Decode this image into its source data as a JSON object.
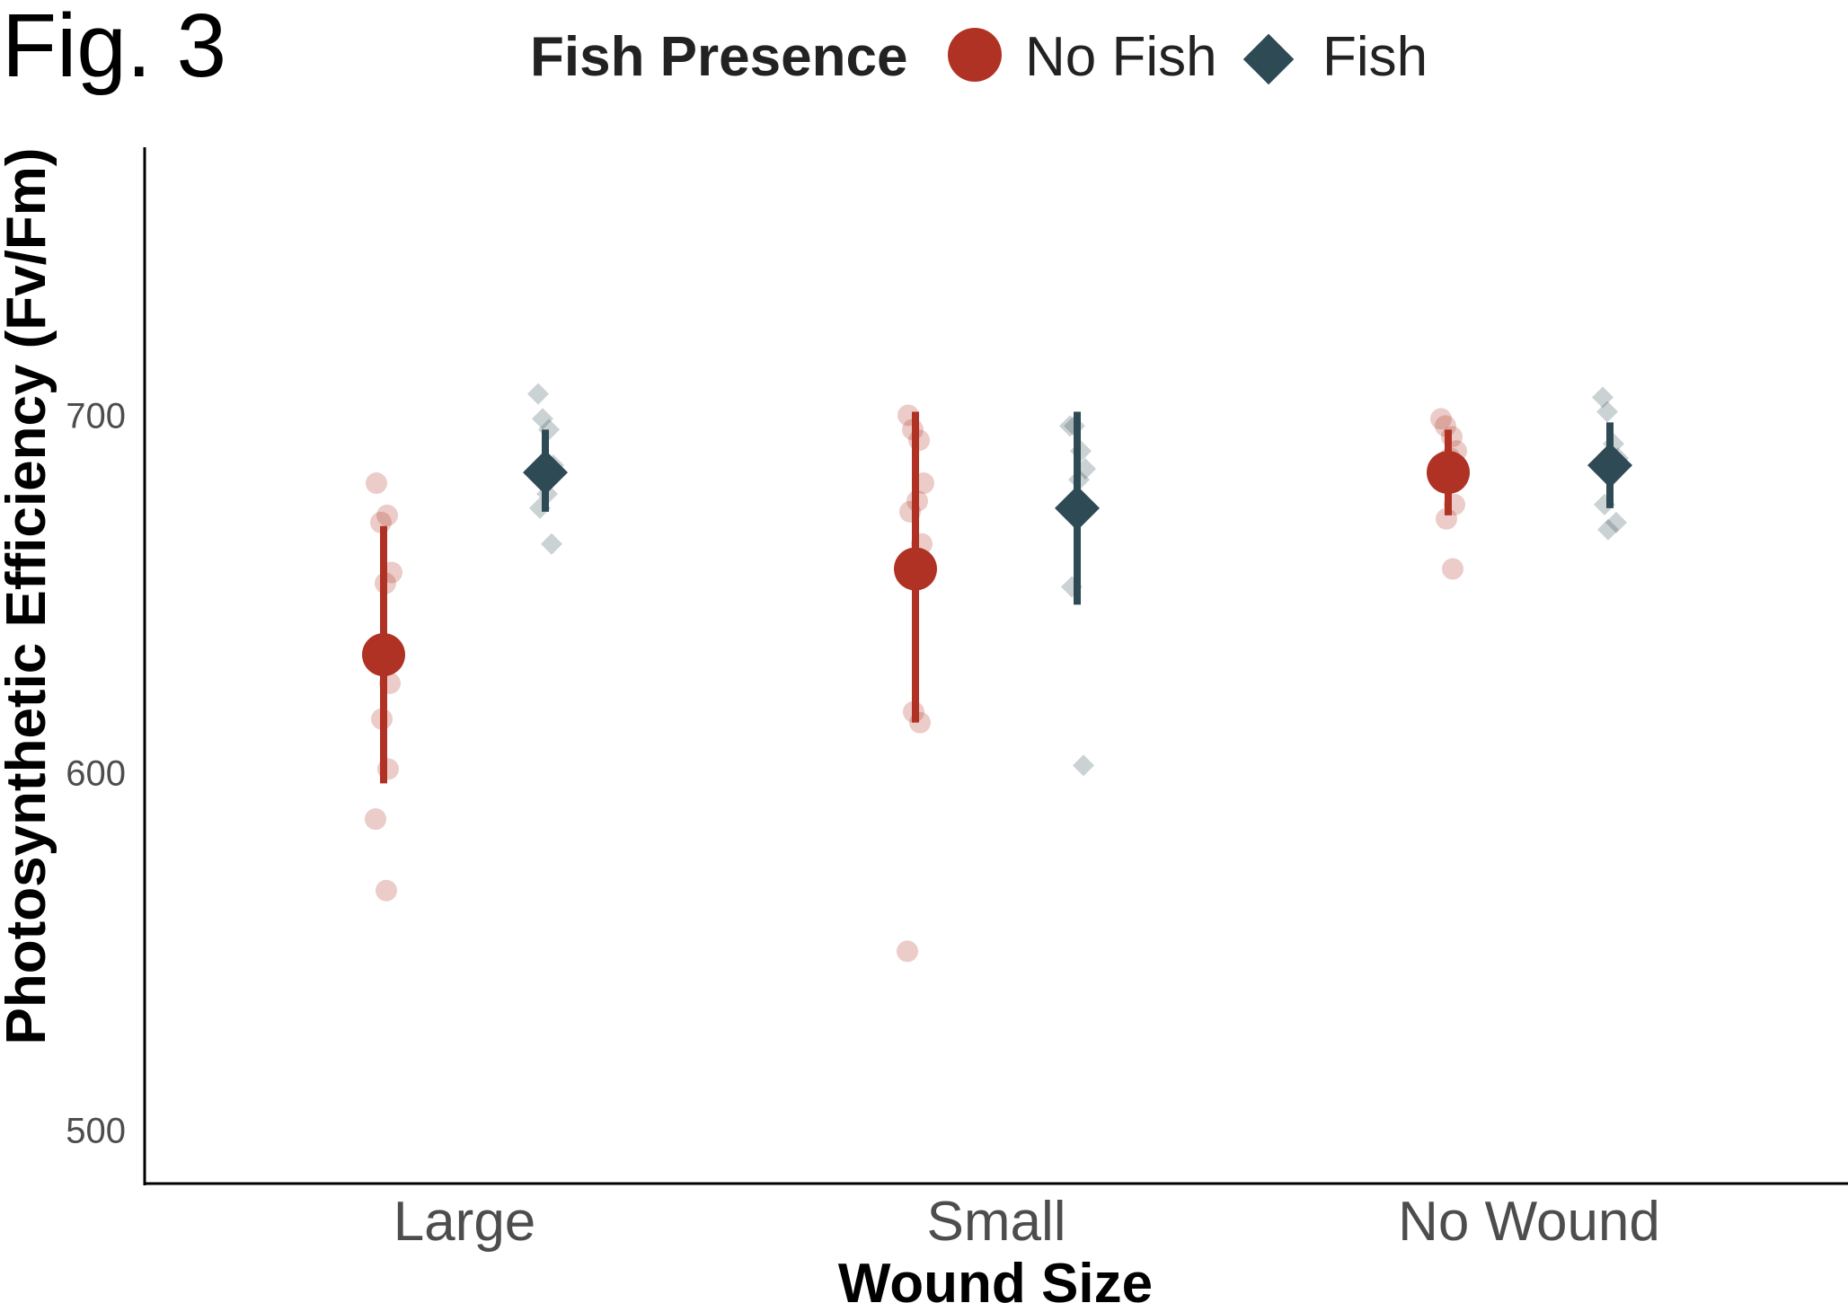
{
  "figure_label": "Fig. 3",
  "chart_data": {
    "type": "scatter",
    "title": "",
    "xlabel": "Wound Size",
    "ylabel": "Photosynthetic Efficiency (Fv/Fm)",
    "categories": [
      "Large",
      "Small",
      "No Wound"
    ],
    "ylim": [
      485,
      775
    ],
    "yticks": [
      500,
      600,
      700
    ],
    "grid": false,
    "legend": {
      "title": "Fish Presence",
      "placement": "top"
    },
    "series": [
      {
        "name": "No Fish",
        "color": "#b03224",
        "marker": "circle",
        "means": [
          633,
          657,
          684
        ],
        "error_low": [
          597,
          614,
          672
        ],
        "error_high": [
          669,
          701,
          696
        ],
        "points": [
          [
            681,
            670,
            672,
            656,
            653,
            633,
            625,
            615,
            601,
            587,
            567
          ],
          [
            700,
            696,
            693,
            681,
            676,
            673,
            664,
            617,
            614,
            550
          ],
          [
            699,
            697,
            694,
            690,
            688,
            685,
            675,
            671,
            657
          ]
        ]
      },
      {
        "name": "Fish",
        "color": "#2e4b55",
        "marker": "diamond",
        "means": [
          684,
          674,
          686
        ],
        "error_low": [
          673,
          647,
          674
        ],
        "error_high": [
          696,
          701,
          698
        ],
        "points": [
          [
            706,
            699,
            696,
            686,
            678,
            674,
            664
          ],
          [
            697,
            697,
            690,
            685,
            682,
            652,
            602
          ],
          [
            705,
            701,
            692,
            688,
            683,
            675,
            670,
            668
          ]
        ]
      }
    ]
  }
}
